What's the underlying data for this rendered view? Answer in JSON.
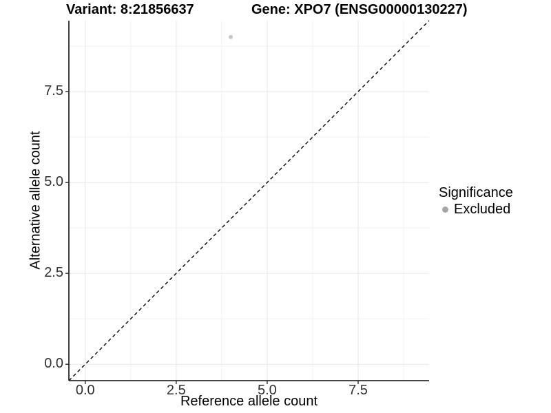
{
  "titles": {
    "variant": "Variant: 8:21856637",
    "gene": "Gene: XPO7 (ENSG00000130227)"
  },
  "axes": {
    "x_label": "Reference allele count",
    "y_label": "Alternative allele count"
  },
  "legend": {
    "title": "Significance",
    "items": [
      {
        "label": "Excluded",
        "color": "#a6a6a6"
      }
    ]
  },
  "colors": {
    "background": "#ffffff",
    "grid_major": "#e7e7e7",
    "grid_minor": "#f2f2f2",
    "axis_line": "#2b2b2b",
    "tick_mark": "#333333",
    "tick_label": "#303030",
    "abline": "#000000",
    "point": "#c6c6c6",
    "legend_point": "#a6a6a6"
  },
  "chart_data": {
    "type": "scatter",
    "title": "Variant: 8:21856637    Gene: XPO7 (ENSG00000130227)",
    "xlabel": "Reference allele count",
    "ylabel": "Alternative allele count",
    "xlim": [
      -0.45,
      9.45
    ],
    "ylim": [
      -0.45,
      9.45
    ],
    "x_ticks": [
      0.0,
      2.5,
      5.0,
      7.5
    ],
    "x_tick_labels": [
      "0.0",
      "2.5",
      "5.0",
      "7.5"
    ],
    "y_ticks": [
      0.0,
      2.5,
      5.0,
      7.5
    ],
    "y_tick_labels": [
      "0.0",
      "2.5",
      "5.0",
      "7.5"
    ],
    "minor_ticks": [
      1.25,
      3.75,
      6.25,
      8.75
    ],
    "grid": true,
    "legend_position": "right",
    "series": [
      {
        "name": "Excluded",
        "color": "#c6c6c6",
        "points": [
          {
            "x": 4,
            "y": 9
          }
        ]
      }
    ],
    "abline": {
      "slope": 1,
      "intercept": 0,
      "linetype": "dashed",
      "color": "#000000"
    }
  }
}
